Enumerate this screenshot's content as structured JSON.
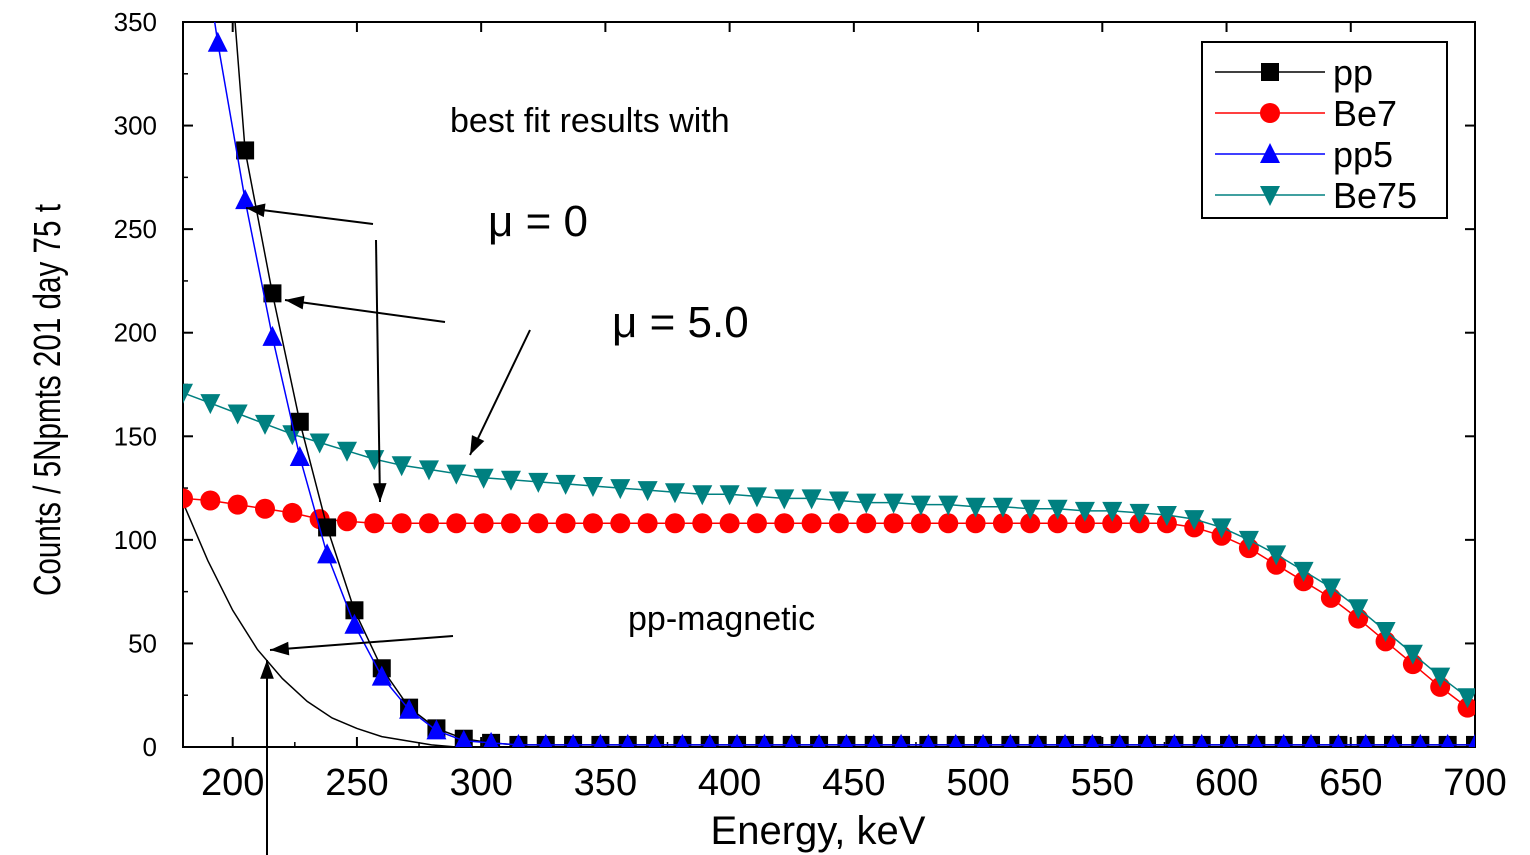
{
  "chart_data": {
    "type": "line",
    "xlabel": "Energy, keV",
    "ylabel": "Counts / 5Npmts 201 day 75 t",
    "xlim": [
      180,
      700
    ],
    "ylim": [
      0,
      350
    ],
    "x_ticks": [
      200,
      250,
      300,
      350,
      400,
      450,
      500,
      550,
      600,
      650,
      700
    ],
    "y_ticks": [
      0,
      50,
      100,
      150,
      200,
      250,
      300,
      350
    ],
    "grid": false,
    "legend_position": "top-right",
    "annotations": {
      "text1": "best fit results with",
      "mu0": "μ = 0",
      "mu5": "μ = 5.0",
      "magnetic": "pp-magnetic"
    },
    "series": [
      {
        "name": "pp",
        "color": "#000000",
        "marker": "square",
        "x": [
          205,
          216,
          227,
          238,
          249,
          260,
          271,
          282,
          293,
          304,
          315,
          326,
          337,
          348,
          359,
          370,
          381,
          392,
          403,
          414,
          425,
          436,
          447,
          458,
          469,
          480,
          491,
          502,
          513,
          524,
          535,
          546,
          557,
          568,
          579,
          590,
          601,
          612,
          623,
          634,
          645,
          656,
          667,
          678,
          689,
          700
        ],
        "values": [
          288,
          219,
          157,
          106,
          66,
          38,
          19,
          9,
          4,
          2,
          1,
          1,
          1,
          1,
          1,
          1,
          1,
          1,
          1,
          1,
          1,
          1,
          1,
          1,
          1,
          1,
          1,
          1,
          1,
          1,
          1,
          1,
          1,
          1,
          1,
          1,
          1,
          1,
          1,
          1,
          1,
          1,
          1,
          1,
          1,
          1
        ]
      },
      {
        "name": "Be7",
        "color": "#ff0000",
        "marker": "circle",
        "x": [
          180,
          191,
          202,
          213,
          224,
          235,
          246,
          257,
          268,
          279,
          290,
          301,
          312,
          323,
          334,
          345,
          356,
          367,
          378,
          389,
          400,
          411,
          422,
          433,
          444,
          455,
          466,
          477,
          488,
          499,
          510,
          521,
          532,
          543,
          554,
          565,
          576,
          587,
          598,
          609,
          620,
          631,
          642,
          653,
          664,
          675,
          686,
          697
        ],
        "values": [
          120,
          119,
          117,
          115,
          113,
          110,
          109,
          108,
          108,
          108,
          108,
          108,
          108,
          108,
          108,
          108,
          108,
          108,
          108,
          108,
          108,
          108,
          108,
          108,
          108,
          108,
          108,
          108,
          108,
          108,
          108,
          108,
          108,
          108,
          108,
          108,
          108,
          106,
          102,
          96,
          88,
          80,
          72,
          62,
          51,
          40,
          29,
          19
        ]
      },
      {
        "name": "pp5",
        "color": "#0000ff",
        "marker": "triangle-up",
        "x": [
          194,
          205,
          216,
          227,
          238,
          249,
          260,
          271,
          282,
          293,
          304,
          315,
          326,
          337,
          348,
          359,
          370,
          381,
          392,
          403,
          414,
          425,
          436,
          447,
          458,
          469,
          480,
          491,
          502,
          513,
          524,
          535,
          546,
          557,
          568,
          579,
          590,
          601,
          612,
          623,
          634,
          645,
          656,
          667,
          678,
          689,
          700
        ],
        "values": [
          340,
          264,
          198,
          140,
          93,
          59,
          34,
          18,
          8,
          3,
          2,
          1,
          1,
          1,
          1,
          1,
          1,
          1,
          1,
          1,
          1,
          1,
          1,
          1,
          1,
          1,
          1,
          1,
          1,
          1,
          1,
          1,
          1,
          1,
          1,
          1,
          1,
          1,
          1,
          1,
          1,
          1,
          1,
          1,
          1,
          1,
          1
        ]
      },
      {
        "name": "Be75",
        "color": "#008080",
        "marker": "triangle-down",
        "x": [
          180,
          191,
          202,
          213,
          224,
          235,
          246,
          257,
          268,
          279,
          290,
          301,
          312,
          323,
          334,
          345,
          356,
          367,
          378,
          389,
          400,
          411,
          422,
          433,
          444,
          455,
          466,
          477,
          488,
          499,
          510,
          521,
          532,
          543,
          554,
          565,
          576,
          587,
          598,
          609,
          620,
          631,
          642,
          653,
          664,
          675,
          686,
          697
        ],
        "values": [
          171,
          166,
          161,
          156,
          151,
          147,
          143,
          139,
          136,
          134,
          132,
          130,
          129,
          128,
          127,
          126,
          125,
          124,
          123,
          122,
          122,
          121,
          120,
          120,
          119,
          118,
          118,
          117,
          117,
          116,
          116,
          115,
          115,
          114,
          114,
          113,
          112,
          110,
          106,
          100,
          93,
          85,
          77,
          67,
          56,
          45,
          34,
          24
        ]
      }
    ],
    "extra_curve": {
      "color": "#000000",
      "x": [
        180,
        190,
        200,
        210,
        220,
        230,
        240,
        250,
        260,
        270,
        280,
        290
      ],
      "values": [
        118,
        90,
        66,
        47,
        33,
        22,
        14,
        9,
        5,
        3,
        1,
        0
      ]
    }
  }
}
